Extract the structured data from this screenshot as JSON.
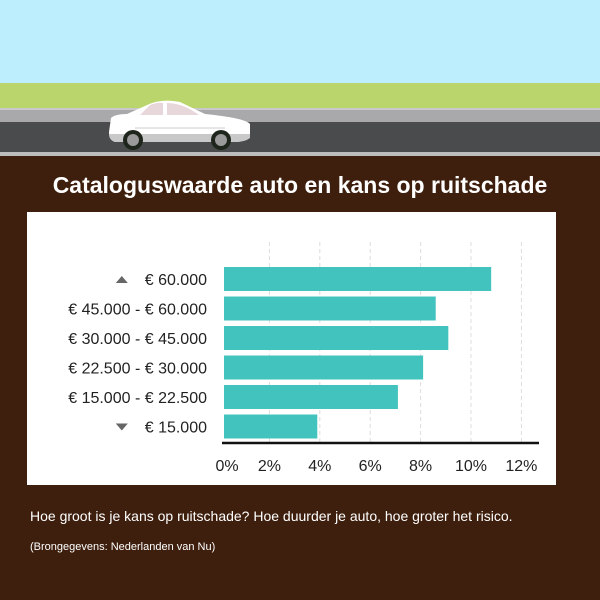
{
  "title": "Cataloguswaarde auto en kans op ruitschade",
  "caption": "Hoe groot is je kans op ruitschade? Hoe duurder je auto, hoe groter het risico.",
  "source": "(Brongegevens: Nederlanden van Nu)",
  "colors": {
    "bar": "#43c3bd",
    "background": "#3e1f0d",
    "sky": "#bdeefd",
    "grass": "#b9d56c"
  },
  "chart_data": {
    "type": "bar",
    "orientation": "horizontal",
    "categories": [
      {
        "label": "€ 60.000",
        "icon": "triangle-up-icon"
      },
      {
        "label": "€ 45.000 - € 60.000",
        "icon": ""
      },
      {
        "label": "€ 30.000 - € 45.000",
        "icon": ""
      },
      {
        "label": "€ 22.500 - € 30.000",
        "icon": ""
      },
      {
        "label": "€ 15.000 - € 22.500",
        "icon": ""
      },
      {
        "label": "€ 15.000",
        "icon": "triangle-down-icon"
      }
    ],
    "values": [
      10.8,
      8.6,
      9.1,
      8.1,
      7.1,
      3.9
    ],
    "unit": "%",
    "xlim": [
      0,
      12.8
    ],
    "xticks": [
      "0%",
      "2%",
      "4%",
      "6%",
      "8%",
      "10%",
      "12%"
    ],
    "xtick_values": [
      0,
      2,
      4,
      6,
      8,
      10,
      12
    ],
    "grid": "vertical dashed"
  }
}
